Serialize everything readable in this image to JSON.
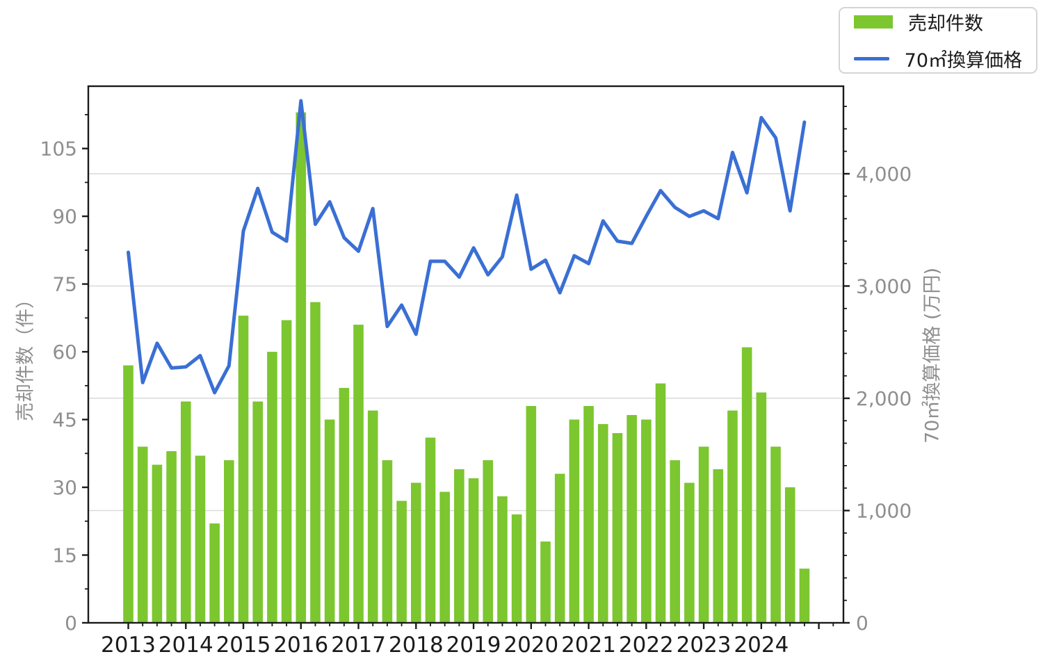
{
  "chart_data": {
    "type": "bar+line combo, dual axis",
    "categories": [
      "2013Q1",
      "2013Q2",
      "2013Q3",
      "2013Q4",
      "2014Q1",
      "2014Q2",
      "2014Q3",
      "2014Q4",
      "2015Q1",
      "2015Q2",
      "2015Q3",
      "2015Q4",
      "2016Q1",
      "2016Q2",
      "2016Q3",
      "2016Q4",
      "2017Q1",
      "2017Q2",
      "2017Q3",
      "2017Q4",
      "2018Q1",
      "2018Q2",
      "2018Q3",
      "2018Q4",
      "2019Q1",
      "2019Q2",
      "2019Q3",
      "2019Q4",
      "2020Q1",
      "2020Q2",
      "2020Q3",
      "2020Q4",
      "2021Q1",
      "2021Q2",
      "2021Q3",
      "2021Q4",
      "2022Q1",
      "2022Q2",
      "2022Q3",
      "2022Q4",
      "2023Q1",
      "2023Q2",
      "2023Q3",
      "2023Q4",
      "2024Q1",
      "2024Q2",
      "2024Q3",
      "2024Q4"
    ],
    "series": [
      {
        "name": "売却件数",
        "type": "bar",
        "axis": "left",
        "color": "#7cc62f",
        "values": [
          57,
          39,
          35,
          38,
          49,
          37,
          22,
          36,
          68,
          49,
          60,
          67,
          113,
          71,
          45,
          52,
          66,
          47,
          36,
          27,
          31,
          41,
          29,
          34,
          32,
          36,
          28,
          24,
          48,
          18,
          33,
          45,
          48,
          44,
          42,
          46,
          45,
          53,
          36,
          31,
          39,
          34,
          47,
          61,
          51,
          39,
          30,
          12
        ]
      },
      {
        "name": "70㎡換算価格",
        "type": "line",
        "axis": "right",
        "color": "#3a6fd4",
        "values": [
          3300,
          2140,
          2490,
          2270,
          2280,
          2380,
          2050,
          2290,
          3490,
          3870,
          3480,
          3400,
          4650,
          3550,
          3750,
          3430,
          3310,
          3690,
          2640,
          2830,
          2570,
          3220,
          3220,
          3080,
          3340,
          3100,
          3260,
          3810,
          3150,
          3230,
          2940,
          3270,
          3200,
          3580,
          3400,
          3380,
          3620,
          3850,
          3700,
          3620,
          3670,
          3600,
          4190,
          3830,
          4500,
          4320,
          3670,
          4460
        ]
      }
    ],
    "x_axis": {
      "tick_labels": [
        "2013",
        "2014",
        "2015",
        "2016",
        "2017",
        "2018",
        "2019",
        "2020",
        "2021",
        "2022",
        "2023",
        "2024"
      ],
      "minor": "quarterly"
    },
    "left_axis": {
      "label": "売却件数（件）",
      "ticks": [
        0,
        15,
        30,
        45,
        60,
        75,
        90,
        105
      ],
      "max": 118.8,
      "minor_step": 7.5
    },
    "right_axis": {
      "label": "70㎡換算価格 (万円)",
      "ticks": [
        0,
        1000,
        2000,
        3000,
        4000
      ],
      "tick_labels": [
        "0",
        "1,000",
        "2,000",
        "3,000",
        "4,000"
      ],
      "max": 4780,
      "minor_step": 200
    },
    "grid": {
      "horizontal_at_right_axis_majors": true,
      "color": "#dcdcdc"
    },
    "legend": {
      "position": "top-right",
      "items": [
        {
          "label": "売却件数",
          "marker": "bar-swatch",
          "color": "#7cc62f"
        },
        {
          "label": "70㎡換算価格",
          "marker": "line-swatch",
          "color": "#3a6fd4"
        }
      ]
    }
  },
  "colors": {
    "bar": "#7cc62f",
    "line": "#3a6fd4",
    "grid": "#dcdcdc",
    "spine": "#1a1a1a",
    "tick_label": "#8e8e8e",
    "x_tick_label": "#1a1a1a",
    "axis_title": "#8e8e8e",
    "legend_border": "#d4d4d4",
    "background": "#ffffff"
  }
}
